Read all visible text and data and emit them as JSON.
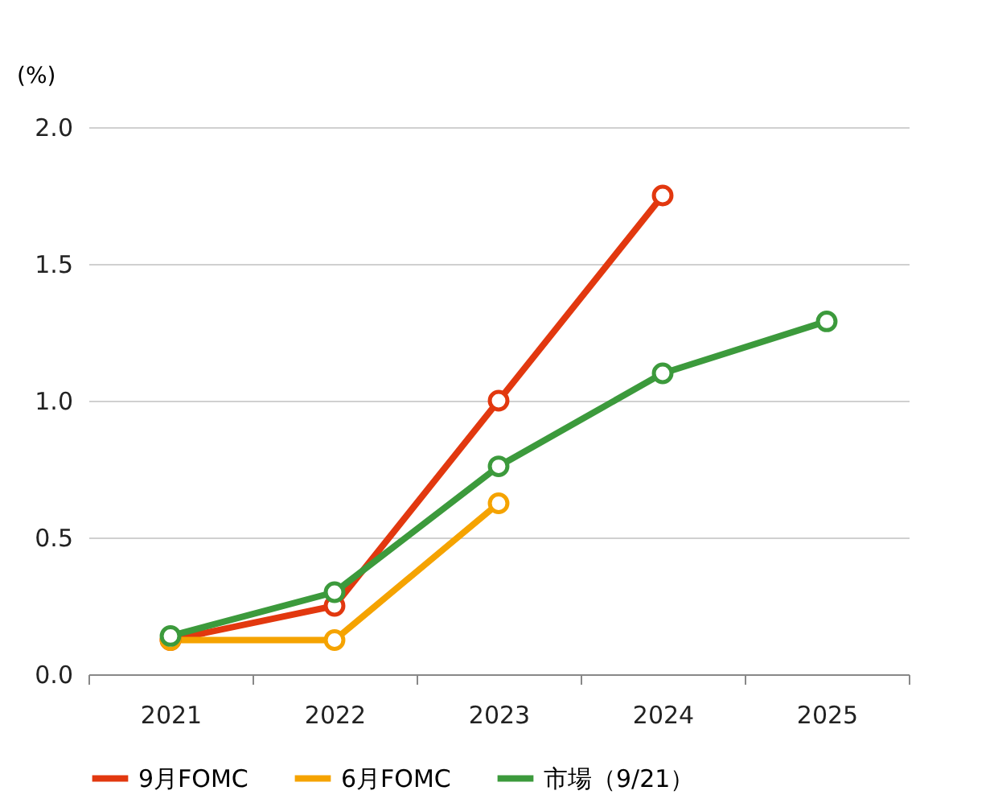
{
  "chart_data": {
    "type": "line",
    "ylabel": "(%)",
    "categories": [
      "2021",
      "2022",
      "2023",
      "2024",
      "2025"
    ],
    "series": [
      {
        "name": "9月FOMC",
        "color": "#e2380f",
        "values": [
          0.125,
          0.25,
          1.0,
          1.75,
          null
        ]
      },
      {
        "name": "6月FOMC",
        "color": "#f5a300",
        "values": [
          0.125,
          0.125,
          0.625,
          null,
          null
        ]
      },
      {
        "name": "市場（9/21）",
        "color": "#3c9a3c",
        "values": [
          0.14,
          0.3,
          0.76,
          1.1,
          1.29
        ]
      }
    ],
    "ylim": [
      0,
      2.0
    ],
    "yticks": [
      {
        "value": 0,
        "label": "0.0"
      },
      {
        "value": 0.5,
        "label": "0.5"
      },
      {
        "value": 1.0,
        "label": "1.0"
      },
      {
        "value": 1.5,
        "label": "1.5"
      },
      {
        "value": 2.0,
        "label": "2.0"
      }
    ],
    "grid": "y",
    "legend": "bottom",
    "marker": "circle",
    "line_style": "solid"
  }
}
